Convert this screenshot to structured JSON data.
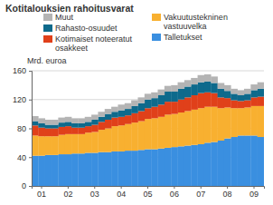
{
  "chart_data": {
    "type": "bar",
    "stacked": true,
    "grid": true,
    "title": "Kotitalouksien rahoitusvarat",
    "y_label": "Mrd. euroa",
    "categories": [
      null,
      "01",
      null,
      null,
      null,
      "02",
      null,
      null,
      null,
      "03",
      null,
      null,
      null,
      "04",
      null,
      null,
      null,
      "05",
      null,
      null,
      null,
      "06",
      null,
      null,
      null,
      "07",
      null,
      null,
      null,
      "08",
      null,
      null,
      null,
      "09",
      null
    ],
    "ylim": [
      0,
      160
    ],
    "yticks": [
      0,
      40,
      80,
      120,
      160
    ],
    "series": [
      {
        "name": "Talletukset",
        "color": "#3a8fe0",
        "values": [
          42,
          42,
          43,
          43,
          44,
          44,
          45,
          45,
          46,
          46,
          47,
          47,
          48,
          48,
          49,
          49,
          50,
          51,
          51,
          52,
          53,
          54,
          55,
          56,
          57,
          58,
          60,
          61,
          63,
          66,
          68,
          70,
          70,
          70,
          68
        ]
      },
      {
        "name": "Vakuutustekninen vastuuvelka",
        "color": "#f8b030",
        "values": [
          28,
          27,
          26,
          26,
          27,
          28,
          27,
          27,
          28,
          29,
          31,
          33,
          35,
          36,
          37,
          39,
          40,
          42,
          43,
          44,
          46,
          46,
          47,
          48,
          49,
          50,
          50,
          49,
          45,
          43,
          40,
          38,
          39,
          41,
          43
        ]
      },
      {
        "name": "Kotimaiset noteeratut osakkeet",
        "color": "#e0401a",
        "values": [
          14,
          12,
          11,
          11,
          11,
          11,
          9,
          9,
          9,
          10,
          11,
          12,
          12,
          12,
          12,
          13,
          14,
          15,
          16,
          17,
          18,
          17,
          18,
          19,
          20,
          21,
          20,
          19,
          15,
          13,
          11,
          10,
          10,
          12,
          13
        ]
      },
      {
        "name": "Rahasto-osuudet",
        "color": "#0e6a8c",
        "values": [
          6,
          6,
          5,
          5,
          6,
          6,
          6,
          6,
          6,
          7,
          7,
          8,
          8,
          9,
          9,
          10,
          11,
          12,
          12,
          13,
          14,
          14,
          15,
          15,
          15,
          15,
          15,
          14,
          12,
          10,
          9,
          8,
          9,
          10,
          11
        ]
      },
      {
        "name": "Muut",
        "color": "#b4b4b4",
        "values": [
          7,
          7,
          7,
          7,
          7,
          7,
          7,
          7,
          7,
          7,
          7,
          7,
          7,
          8,
          8,
          8,
          8,
          8,
          8,
          8,
          8,
          9,
          9,
          9,
          9,
          10,
          10,
          9,
          8,
          8,
          7,
          7,
          7,
          8,
          9
        ]
      }
    ]
  }
}
